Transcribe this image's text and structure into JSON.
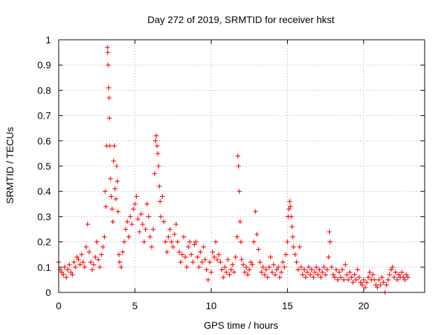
{
  "chart_data": {
    "type": "scatter",
    "title": "Day 272 of 2019, SRMTID for receiver hkst",
    "xlabel": "GPS time / hours",
    "ylabel": "SRMTID / TECUs",
    "xlim": [
      0,
      24
    ],
    "ylim": [
      0,
      1
    ],
    "xticks": [
      0,
      5,
      10,
      15,
      20
    ],
    "yticks": [
      0,
      0.1,
      0.2,
      0.3,
      0.4,
      0.5,
      0.6,
      0.7,
      0.8,
      0.9,
      1
    ],
    "xtick_labels": [
      "0",
      "5",
      "10",
      "15",
      "20"
    ],
    "ytick_labels": [
      "0",
      "0.1",
      "0.2",
      "0.3",
      "0.4",
      "0.5",
      "0.6",
      "0.7",
      "0.8",
      "0.9",
      "1"
    ],
    "grid": true,
    "marker": "+",
    "series_color": "#ff0000",
    "series": [
      {
        "name": "SRMTID",
        "points": [
          [
            0.0,
            0.12
          ],
          [
            0.1,
            0.09
          ],
          [
            0.2,
            0.08
          ],
          [
            0.3,
            0.07
          ],
          [
            0.4,
            0.1
          ],
          [
            0.5,
            0.06
          ],
          [
            0.6,
            0.09
          ],
          [
            0.7,
            0.11
          ],
          [
            0.8,
            0.08
          ],
          [
            0.9,
            0.07
          ],
          [
            1.0,
            0.12
          ],
          [
            1.1,
            0.1
          ],
          [
            1.2,
            0.14
          ],
          [
            1.3,
            0.13
          ],
          [
            1.4,
            0.11
          ],
          [
            1.5,
            0.15
          ],
          [
            1.6,
            0.12
          ],
          [
            1.7,
            0.1
          ],
          [
            1.8,
            0.18
          ],
          [
            1.9,
            0.27
          ],
          [
            2.0,
            0.16
          ],
          [
            2.1,
            0.12
          ],
          [
            2.2,
            0.09
          ],
          [
            2.3,
            0.11
          ],
          [
            2.4,
            0.14
          ],
          [
            2.5,
            0.2
          ],
          [
            2.6,
            0.13
          ],
          [
            2.7,
            0.1
          ],
          [
            2.8,
            0.15
          ],
          [
            2.9,
            0.18
          ],
          [
            3.0,
            0.22
          ],
          [
            3.05,
            0.4
          ],
          [
            3.1,
            0.34
          ],
          [
            3.15,
            0.58
          ],
          [
            3.2,
            0.97
          ],
          [
            3.22,
            0.95
          ],
          [
            3.25,
            0.9
          ],
          [
            3.28,
            0.81
          ],
          [
            3.3,
            0.77
          ],
          [
            3.32,
            0.69
          ],
          [
            3.35,
            0.58
          ],
          [
            3.4,
            0.45
          ],
          [
            3.45,
            0.38
          ],
          [
            3.5,
            0.33
          ],
          [
            3.55,
            0.28
          ],
          [
            3.6,
            0.52
          ],
          [
            3.65,
            0.58
          ],
          [
            3.7,
            0.41
          ],
          [
            3.75,
            0.37
          ],
          [
            3.8,
            0.5
          ],
          [
            3.85,
            0.44
          ],
          [
            3.9,
            0.32
          ],
          [
            3.95,
            0.15
          ],
          [
            4.0,
            0.12
          ],
          [
            4.1,
            0.1
          ],
          [
            4.2,
            0.16
          ],
          [
            4.3,
            0.2
          ],
          [
            4.4,
            0.25
          ],
          [
            4.5,
            0.28
          ],
          [
            4.6,
            0.22
          ],
          [
            4.7,
            0.3
          ],
          [
            4.8,
            0.27
          ],
          [
            4.9,
            0.33
          ],
          [
            5.0,
            0.35
          ],
          [
            5.1,
            0.38
          ],
          [
            5.2,
            0.29
          ],
          [
            5.3,
            0.24
          ],
          [
            5.4,
            0.31
          ],
          [
            5.5,
            0.27
          ],
          [
            5.6,
            0.2
          ],
          [
            5.7,
            0.25
          ],
          [
            5.8,
            0.35
          ],
          [
            5.9,
            0.3
          ],
          [
            6.0,
            0.22
          ],
          [
            6.1,
            0.18
          ],
          [
            6.2,
            0.25
          ],
          [
            6.3,
            0.47
          ],
          [
            6.35,
            0.6
          ],
          [
            6.4,
            0.62
          ],
          [
            6.45,
            0.58
          ],
          [
            6.5,
            0.55
          ],
          [
            6.55,
            0.5
          ],
          [
            6.6,
            0.42
          ],
          [
            6.65,
            0.36
          ],
          [
            6.7,
            0.3
          ],
          [
            6.8,
            0.38
          ],
          [
            6.9,
            0.28
          ],
          [
            7.0,
            0.2
          ],
          [
            7.1,
            0.16
          ],
          [
            7.2,
            0.22
          ],
          [
            7.3,
            0.25
          ],
          [
            7.4,
            0.2
          ],
          [
            7.5,
            0.18
          ],
          [
            7.6,
            0.23
          ],
          [
            7.7,
            0.27
          ],
          [
            7.8,
            0.2
          ],
          [
            7.9,
            0.16
          ],
          [
            8.0,
            0.12
          ],
          [
            8.1,
            0.15
          ],
          [
            8.2,
            0.22
          ],
          [
            8.3,
            0.14
          ],
          [
            8.4,
            0.1
          ],
          [
            8.5,
            0.18
          ],
          [
            8.6,
            0.2
          ],
          [
            8.7,
            0.15
          ],
          [
            8.8,
            0.12
          ],
          [
            8.9,
            0.19
          ],
          [
            9.0,
            0.2
          ],
          [
            9.1,
            0.14
          ],
          [
            9.2,
            0.1
          ],
          [
            9.3,
            0.16
          ],
          [
            9.4,
            0.12
          ],
          [
            9.5,
            0.18
          ],
          [
            9.6,
            0.13
          ],
          [
            9.7,
            0.09
          ],
          [
            9.8,
            0.05
          ],
          [
            9.9,
            0.12
          ],
          [
            10.0,
            0.08
          ],
          [
            10.1,
            0.16
          ],
          [
            10.2,
            0.14
          ],
          [
            10.3,
            0.2
          ],
          [
            10.4,
            0.13
          ],
          [
            10.5,
            0.15
          ],
          [
            10.6,
            0.12
          ],
          [
            10.7,
            0.09
          ],
          [
            10.8,
            0.06
          ],
          [
            10.9,
            0.1
          ],
          [
            11.0,
            0.08
          ],
          [
            11.1,
            0.13
          ],
          [
            11.2,
            0.07
          ],
          [
            11.3,
            0.09
          ],
          [
            11.4,
            0.11
          ],
          [
            11.5,
            0.08
          ],
          [
            11.6,
            0.14
          ],
          [
            11.7,
            0.22
          ],
          [
            11.75,
            0.54
          ],
          [
            11.8,
            0.5
          ],
          [
            11.85,
            0.4
          ],
          [
            11.9,
            0.28
          ],
          [
            11.95,
            0.2
          ],
          [
            12.0,
            0.13
          ],
          [
            12.1,
            0.11
          ],
          [
            12.2,
            0.08
          ],
          [
            12.3,
            0.1
          ],
          [
            12.4,
            0.07
          ],
          [
            12.5,
            0.09
          ],
          [
            12.6,
            0.12
          ],
          [
            12.7,
            0.11
          ],
          [
            12.8,
            0.2
          ],
          [
            12.9,
            0.32
          ],
          [
            13.0,
            0.23
          ],
          [
            13.1,
            0.17
          ],
          [
            13.2,
            0.12
          ],
          [
            13.3,
            0.08
          ],
          [
            13.4,
            0.1
          ],
          [
            13.5,
            0.07
          ],
          [
            13.6,
            0.09
          ],
          [
            13.7,
            0.06
          ],
          [
            13.8,
            0.1
          ],
          [
            13.9,
            0.14
          ],
          [
            14.0,
            0.08
          ],
          [
            14.1,
            0.11
          ],
          [
            14.2,
            0.07
          ],
          [
            14.3,
            0.09
          ],
          [
            14.4,
            0.1
          ],
          [
            14.5,
            0.06
          ],
          [
            14.6,
            0.08
          ],
          [
            14.7,
            0.12
          ],
          [
            14.8,
            0.1
          ],
          [
            14.9,
            0.15
          ],
          [
            15.0,
            0.2
          ],
          [
            15.05,
            0.3
          ],
          [
            15.1,
            0.33
          ],
          [
            15.15,
            0.36
          ],
          [
            15.2,
            0.34
          ],
          [
            15.25,
            0.3
          ],
          [
            15.3,
            0.26
          ],
          [
            15.35,
            0.22
          ],
          [
            15.4,
            0.18
          ],
          [
            15.5,
            0.15
          ],
          [
            15.6,
            0.12
          ],
          [
            15.7,
            0.09
          ],
          [
            15.8,
            0.18
          ],
          [
            15.9,
            0.1
          ],
          [
            16.0,
            0.07
          ],
          [
            16.1,
            0.09
          ],
          [
            16.2,
            0.06
          ],
          [
            16.3,
            0.08
          ],
          [
            16.4,
            0.1
          ],
          [
            16.5,
            0.07
          ],
          [
            16.6,
            0.09
          ],
          [
            16.7,
            0.06
          ],
          [
            16.8,
            0.08
          ],
          [
            16.9,
            0.1
          ],
          [
            17.0,
            0.07
          ],
          [
            17.1,
            0.09
          ],
          [
            17.2,
            0.06
          ],
          [
            17.3,
            0.08
          ],
          [
            17.4,
            0.1
          ],
          [
            17.5,
            0.07
          ],
          [
            17.6,
            0.09
          ],
          [
            17.7,
            0.14
          ],
          [
            17.75,
            0.24
          ],
          [
            17.8,
            0.2
          ],
          [
            17.9,
            0.1
          ],
          [
            18.0,
            0.07
          ],
          [
            18.1,
            0.06
          ],
          [
            18.2,
            0.09
          ],
          [
            18.3,
            0.05
          ],
          [
            18.4,
            0.08
          ],
          [
            18.5,
            0.06
          ],
          [
            18.6,
            0.09
          ],
          [
            18.7,
            0.05
          ],
          [
            18.8,
            0.11
          ],
          [
            18.9,
            0.07
          ],
          [
            19.0,
            0.05
          ],
          [
            19.1,
            0.08
          ],
          [
            19.2,
            0.06
          ],
          [
            19.3,
            0.04
          ],
          [
            19.4,
            0.07
          ],
          [
            19.5,
            0.05
          ],
          [
            19.6,
            0.09
          ],
          [
            19.7,
            0.06
          ],
          [
            19.8,
            0.04
          ],
          [
            19.9,
            0.03
          ],
          [
            20.0,
            0.05
          ],
          [
            20.1,
            0.02
          ],
          [
            20.2,
            0.04
          ],
          [
            20.3,
            0.06
          ],
          [
            20.4,
            0.08
          ],
          [
            20.5,
            0.05
          ],
          [
            20.6,
            0.07
          ],
          [
            20.7,
            0.05
          ],
          [
            20.8,
            0.03
          ],
          [
            20.9,
            0.02
          ],
          [
            21.0,
            0.05
          ],
          [
            21.1,
            0.03
          ],
          [
            21.2,
            0.06
          ],
          [
            21.3,
            0.04
          ],
          [
            21.4,
            0.0
          ],
          [
            21.5,
            0.03
          ],
          [
            21.6,
            0.05
          ],
          [
            21.7,
            0.07
          ],
          [
            21.8,
            0.09
          ],
          [
            21.9,
            0.1
          ],
          [
            22.0,
            0.06
          ],
          [
            22.1,
            0.08
          ],
          [
            22.2,
            0.05
          ],
          [
            22.3,
            0.07
          ],
          [
            22.4,
            0.06
          ],
          [
            22.5,
            0.08
          ],
          [
            22.6,
            0.06
          ],
          [
            22.7,
            0.05
          ],
          [
            22.8,
            0.07
          ],
          [
            22.9,
            0.06
          ]
        ]
      }
    ]
  }
}
